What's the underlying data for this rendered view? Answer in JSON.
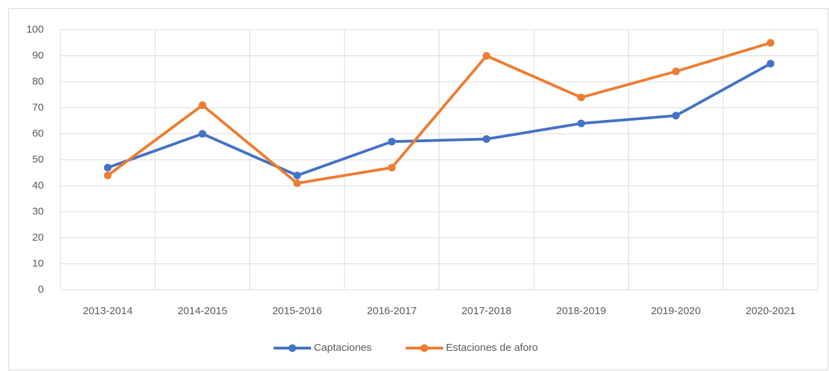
{
  "chart_data": {
    "type": "line",
    "categories": [
      "2013-2014",
      "2014-2015",
      "2015-2016",
      "2016-2017",
      "2017-2018",
      "2018-2019",
      "2019-2020",
      "2020-2021"
    ],
    "series": [
      {
        "name": "Captaciones",
        "color": "#4472c4",
        "values": [
          47,
          60,
          44,
          57,
          58,
          64,
          67,
          87
        ]
      },
      {
        "name": "Estaciones de aforo",
        "color": "#ed7d31",
        "values": [
          44,
          71,
          41,
          47,
          90,
          74,
          84,
          95
        ]
      }
    ],
    "ylim": [
      0,
      100
    ],
    "yticks": [
      0,
      10,
      20,
      30,
      40,
      50,
      60,
      70,
      80,
      90,
      100
    ],
    "grid": true,
    "legend": "bottom"
  }
}
